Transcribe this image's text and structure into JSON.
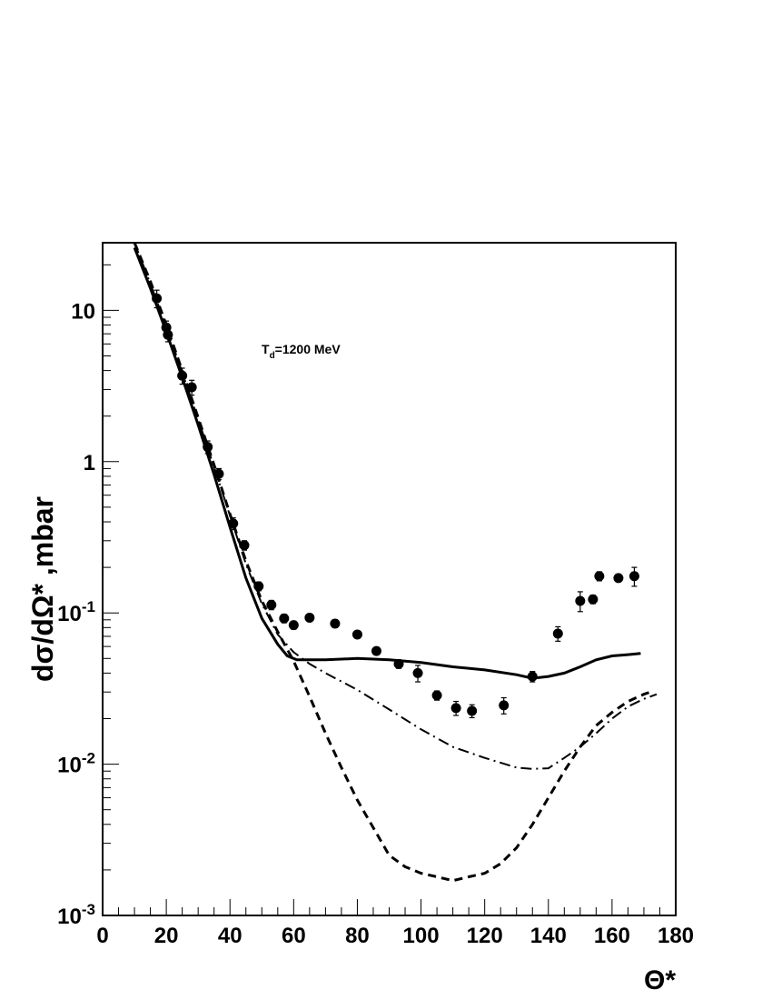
{
  "chart_data": {
    "type": "scatter",
    "title": "",
    "xlabel": "Θ*",
    "ylabel": "dσ/dΩ* ,mbar",
    "annotation": {
      "main": "T",
      "sub": "d",
      "rest": "=1200 MeV"
    },
    "xlim": [
      0,
      180
    ],
    "ylim": [
      0.001,
      28
    ],
    "yscale": "log",
    "grid": false,
    "legend": "none",
    "x_ticks": [
      0,
      20,
      40,
      60,
      80,
      100,
      120,
      140,
      160,
      180
    ],
    "y_ticks": [
      {
        "value": 0.001,
        "base": "10",
        "exp": "-3"
      },
      {
        "value": 0.01,
        "base": "10",
        "exp": "-2"
      },
      {
        "value": 0.1,
        "base": "10",
        "exp": "-1"
      },
      {
        "value": 1,
        "base": "1",
        "exp": ""
      },
      {
        "value": 10,
        "base": "10",
        "exp": ""
      }
    ],
    "points": [
      {
        "x": 17,
        "y": 12,
        "err": 1.6
      },
      {
        "x": 20,
        "y": 7.7,
        "err": 0.8
      },
      {
        "x": 20.5,
        "y": 6.9,
        "err": 0.7
      },
      {
        "x": 25,
        "y": 3.7,
        "err": 0.45
      },
      {
        "x": 28,
        "y": 3.1,
        "err": 0.35
      },
      {
        "x": 33,
        "y": 1.25,
        "err": 0.12
      },
      {
        "x": 36.5,
        "y": 0.83,
        "err": 0.07
      },
      {
        "x": 41,
        "y": 0.39,
        "err": 0.035
      },
      {
        "x": 44.5,
        "y": 0.28,
        "err": 0.02
      },
      {
        "x": 49,
        "y": 0.15,
        "err": 0.01
      },
      {
        "x": 53,
        "y": 0.113,
        "err": 0.008
      },
      {
        "x": 57,
        "y": 0.092,
        "err": 0.006
      },
      {
        "x": 60,
        "y": 0.083,
        "err": 0.005
      },
      {
        "x": 65,
        "y": 0.093,
        "err": 0.005
      },
      {
        "x": 73,
        "y": 0.085,
        "err": 0.005
      },
      {
        "x": 80,
        "y": 0.072,
        "err": 0.004
      },
      {
        "x": 86,
        "y": 0.056,
        "err": 0.003
      },
      {
        "x": 93,
        "y": 0.046,
        "err": 0.003
      },
      {
        "x": 99,
        "y": 0.04,
        "err": 0.005
      },
      {
        "x": 105,
        "y": 0.0285,
        "err": 0.002
      },
      {
        "x": 111,
        "y": 0.0235,
        "err": 0.0025
      },
      {
        "x": 116,
        "y": 0.0225,
        "err": 0.0022
      },
      {
        "x": 126,
        "y": 0.0245,
        "err": 0.003
      },
      {
        "x": 135,
        "y": 0.038,
        "err": 0.003
      },
      {
        "x": 143,
        "y": 0.073,
        "err": 0.008
      },
      {
        "x": 150,
        "y": 0.12,
        "err": 0.018
      },
      {
        "x": 154,
        "y": 0.123,
        "err": 0.008
      },
      {
        "x": 156,
        "y": 0.175,
        "err": 0.012
      },
      {
        "x": 162,
        "y": 0.17,
        "err": 0.008
      },
      {
        "x": 167,
        "y": 0.175,
        "err": 0.025
      }
    ],
    "series": [
      {
        "style": "solid",
        "x": [
          10,
          15,
          20,
          25,
          30,
          35,
          40,
          45,
          50,
          55,
          58,
          61,
          65,
          70,
          80,
          90,
          100,
          110,
          120,
          130,
          135,
          140,
          145,
          150,
          155,
          160,
          165,
          169
        ],
        "y": [
          26,
          14,
          7.2,
          3.6,
          1.75,
          0.82,
          0.37,
          0.17,
          0.092,
          0.062,
          0.052,
          0.049,
          0.049,
          0.049,
          0.05,
          0.049,
          0.047,
          0.044,
          0.042,
          0.039,
          0.037,
          0.038,
          0.04,
          0.044,
          0.049,
          0.052,
          0.053,
          0.054
        ]
      },
      {
        "style": "dashed",
        "x": [
          10,
          15,
          20,
          25,
          30,
          35,
          40,
          45,
          50,
          55,
          60,
          65,
          70,
          75,
          80,
          85,
          90,
          95,
          100,
          105,
          110,
          115,
          120,
          125,
          130,
          135,
          140,
          145,
          150,
          155,
          160,
          165,
          170,
          172
        ],
        "y": [
          28,
          15.5,
          8,
          4,
          1.95,
          0.95,
          0.45,
          0.22,
          0.12,
          0.075,
          0.048,
          0.028,
          0.016,
          0.0095,
          0.0058,
          0.0038,
          0.0025,
          0.0021,
          0.0019,
          0.0018,
          0.0017,
          0.0018,
          0.0019,
          0.0022,
          0.0028,
          0.004,
          0.006,
          0.009,
          0.013,
          0.018,
          0.022,
          0.026,
          0.029,
          0.03
        ]
      },
      {
        "style": "dashdot",
        "x": [
          10,
          15,
          20,
          25,
          30,
          35,
          40,
          45,
          50,
          55,
          60,
          65,
          70,
          80,
          90,
          100,
          110,
          120,
          130,
          135,
          140,
          145,
          150,
          155,
          160,
          165,
          170,
          174
        ],
        "y": [
          28,
          15,
          7.8,
          3.9,
          1.9,
          0.92,
          0.44,
          0.21,
          0.115,
          0.072,
          0.055,
          0.046,
          0.04,
          0.031,
          0.023,
          0.017,
          0.013,
          0.011,
          0.0095,
          0.0093,
          0.0094,
          0.011,
          0.013,
          0.016,
          0.02,
          0.024,
          0.027,
          0.029
        ]
      }
    ]
  }
}
